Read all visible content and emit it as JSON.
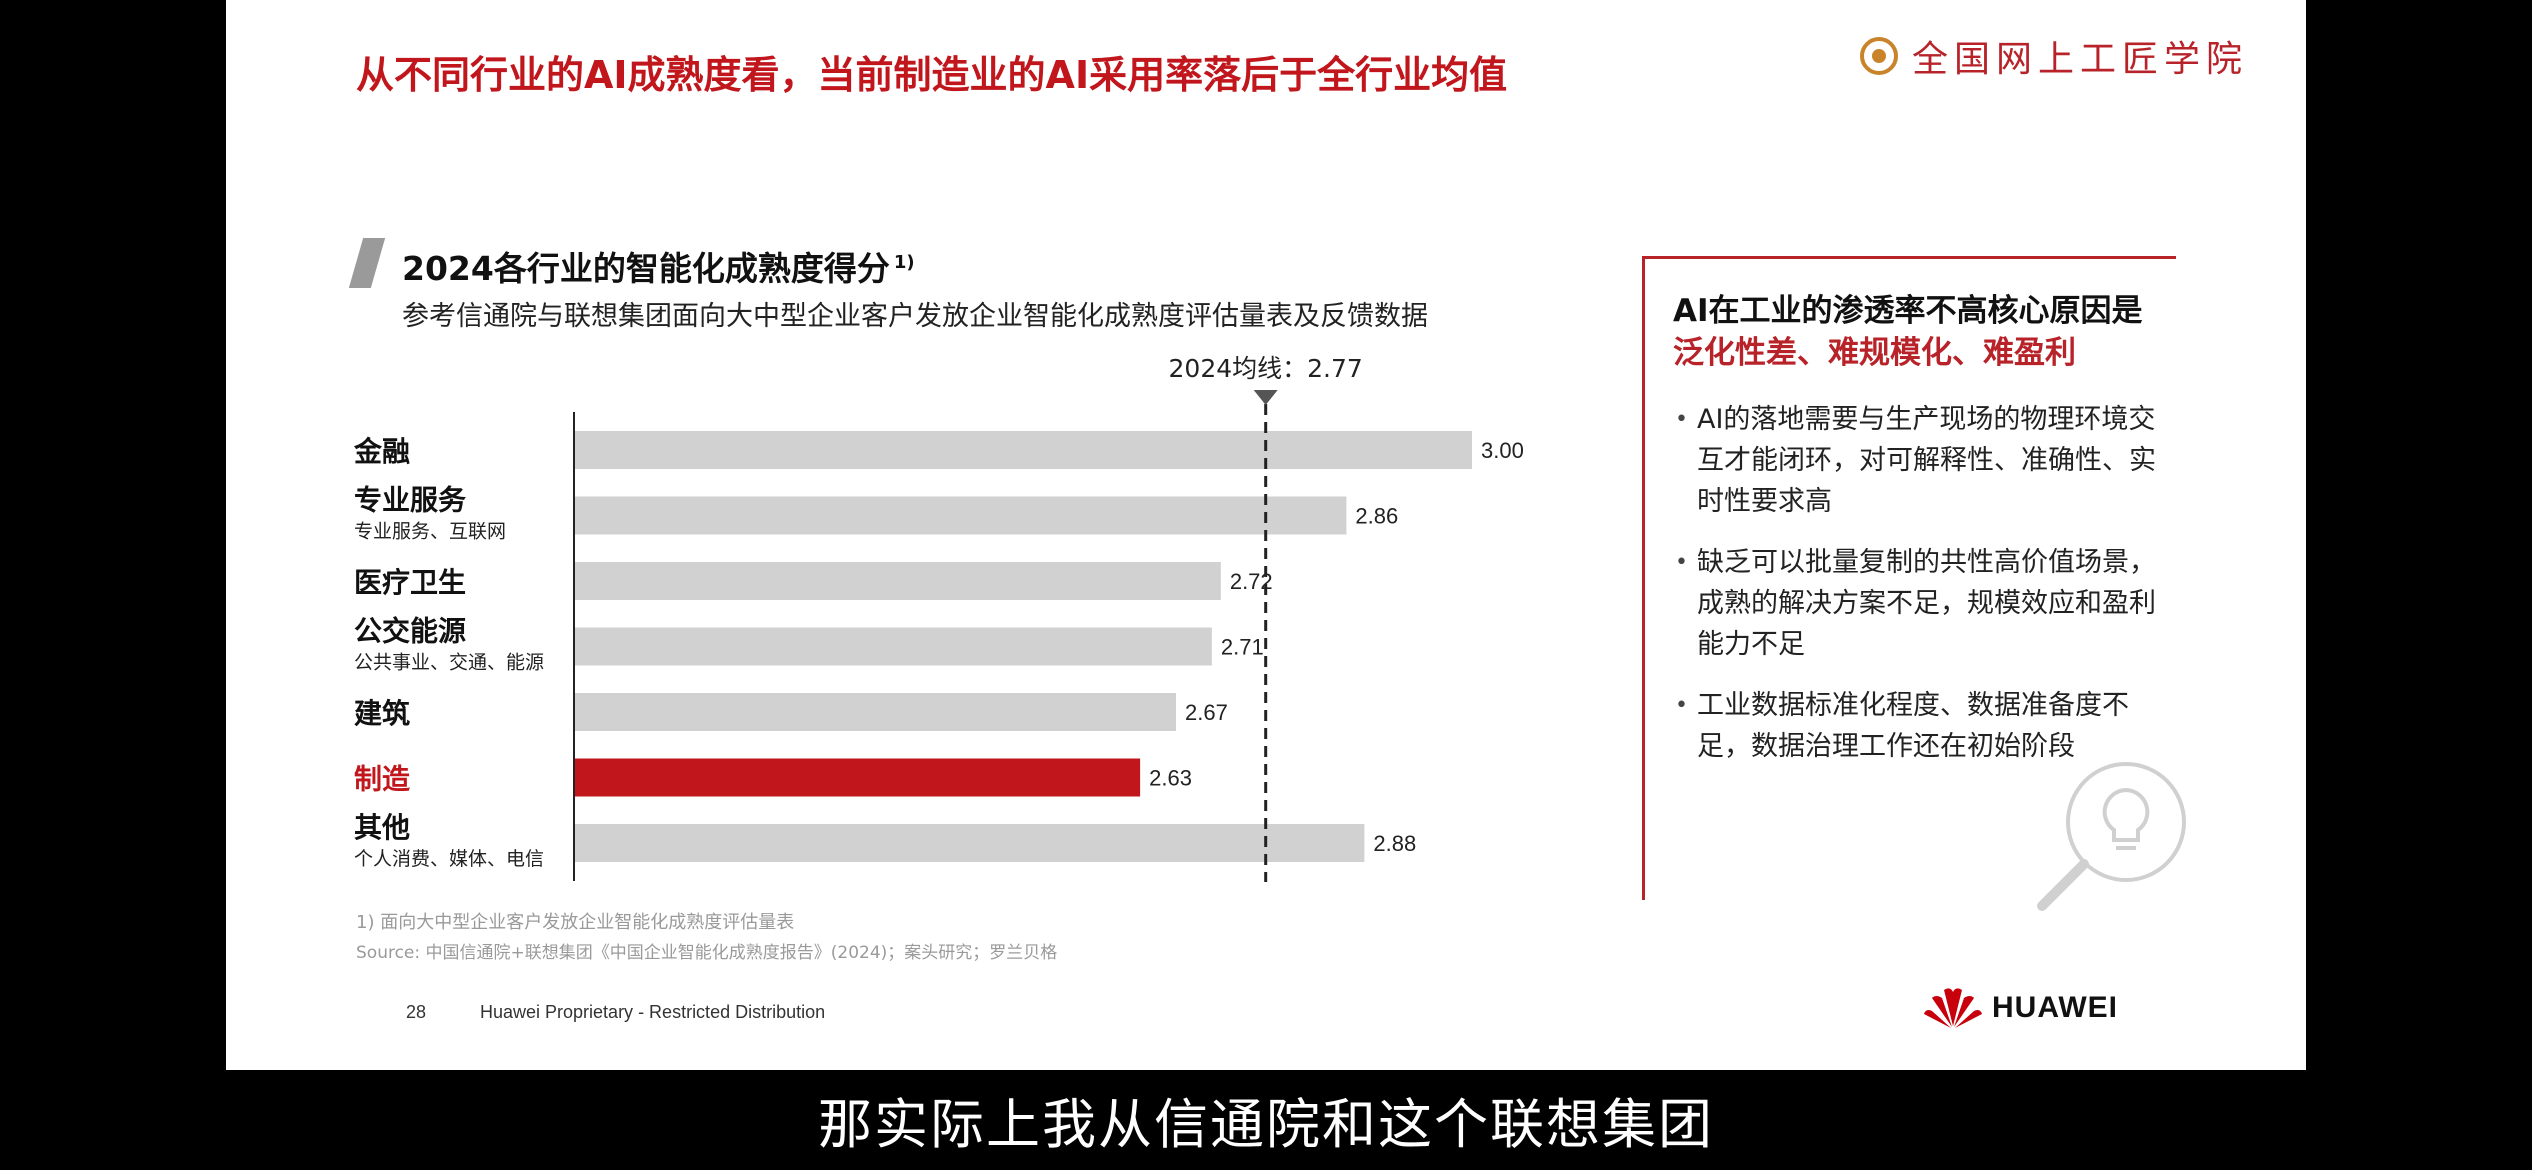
{
  "slide": {
    "headline": "从不同行业的AI成熟度看，当前制造业的AI采用率落后于全行业均值",
    "brand_logo_text": "全国网上工匠学院",
    "footnote": "1) 面向大中型企业客户发放企业智能化成熟度评估量表",
    "source": "Source:  中国信通院+联想集团《中国企业智能化成熟度报告》(2024)；案头研究；罗兰贝格",
    "page_number": "28",
    "proprietary": "Huawei Proprietary - Restricted Distribution",
    "footer_logo_text": "HUAWEI"
  },
  "chart_data": {
    "type": "bar",
    "orientation": "horizontal",
    "title": "2024各行业的智能化成熟度得分",
    "title_superscript": "1)",
    "subtitle": "参考信通院与联想集团面向大中型企业客户发放企业智能化成熟度评估量表及反馈数据",
    "categories": [
      "金融",
      "专业服务",
      "医疗卫生",
      "公交能源",
      "建筑",
      "制造",
      "其他"
    ],
    "category_notes": [
      "",
      "专业服务、互联网",
      "",
      "公共事业、交通、能源",
      "",
      "",
      "个人消费、媒体、电信"
    ],
    "values": [
      3.0,
      2.86,
      2.72,
      2.71,
      2.67,
      2.63,
      2.88
    ],
    "value_labels": [
      "3.00",
      "2.86",
      "2.72",
      "2.71",
      "2.67",
      "2.63",
      "2.88"
    ],
    "highlight_category": "制造",
    "reference_line": {
      "value": 2.77,
      "label": "2024均线：2.77"
    },
    "xlim": [
      2.0,
      3.0
    ],
    "colors": {
      "bar": "#d1d1d1",
      "highlight": "#c0161c",
      "label": "#111111",
      "highlight_label": "#c0161c"
    }
  },
  "panel": {
    "title": "AI在工业的渗透率不高核心原因是",
    "title_highlight": "泛化性差、难规模化、难盈利",
    "bullets": [
      "AI的落地需要与生产现场的物理环境交互才能闭环，对可解释性、准确性、实时性要求高",
      "缺乏可以批量复制的共性高价值场景，成熟的解决方案不足，规模效应和盈利能力不足",
      "工业数据标准化程度、数据准备度不足，数据治理工作还在初始阶段"
    ],
    "icon": "lightbulb-magnifier-icon"
  },
  "video_subtitle": "那实际上我从信通院和这个联想集团"
}
